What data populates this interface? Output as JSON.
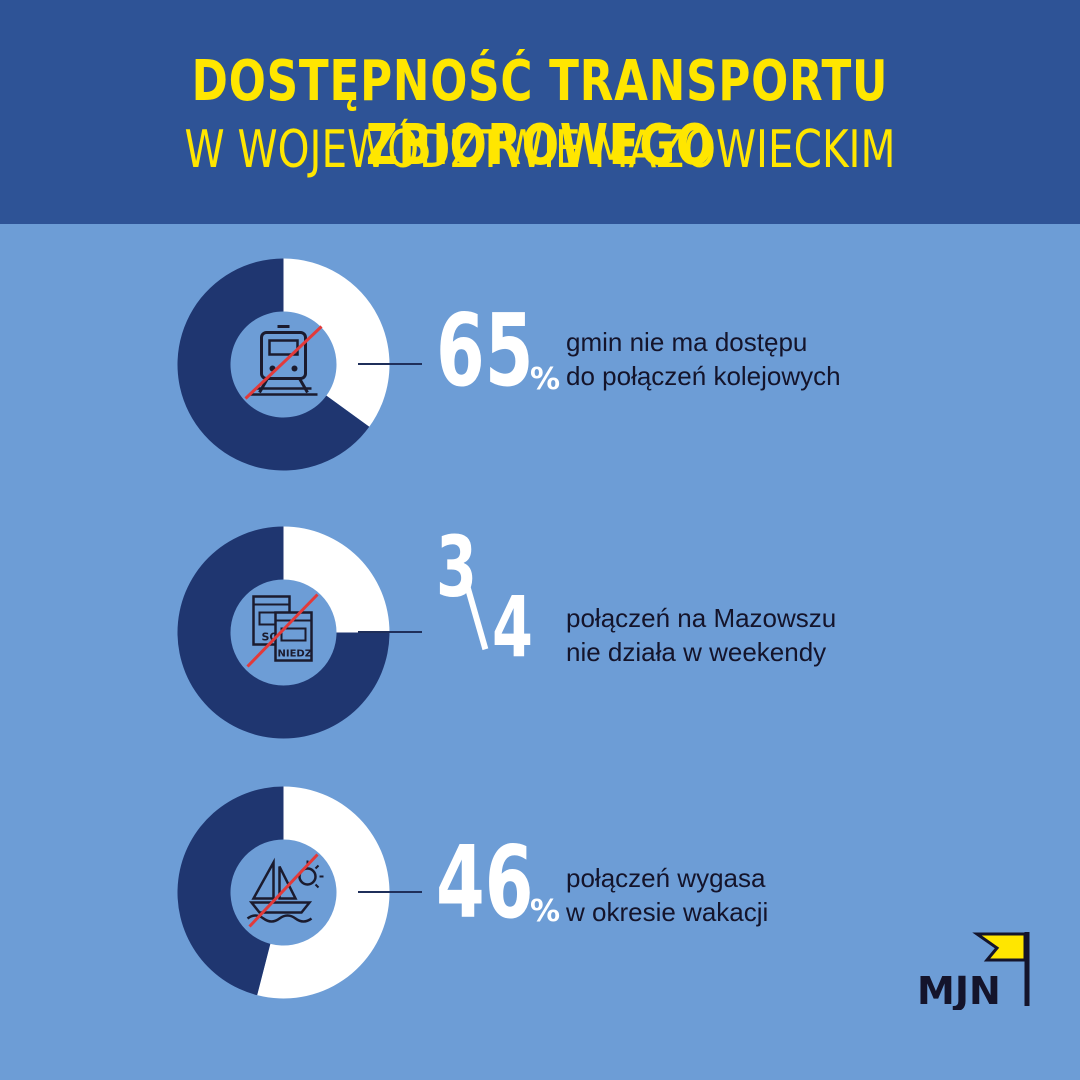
{
  "header": {
    "title_line1": "DOSTĘPNOŚĆ TRANSPORTU ZBIOROWEGO",
    "title_line2": "W WOJEWÓDZTWIE MAZOWIECKIM"
  },
  "colors": {
    "header_bg": "#2e5396",
    "page_bg": "#6d9dd6",
    "title": "#ffe600",
    "donut_share": "#1f3670",
    "donut_rest": "#ffffff",
    "icon_strike": "#e23a3a"
  },
  "stats": [
    {
      "value": "65",
      "suffix": "%",
      "line1": "gmin nie ma dostępu",
      "line2": "do połączeń kolejowych",
      "icon": "train-icon"
    },
    {
      "numerator": "3",
      "denominator": "4",
      "line1": "połączeń na Mazowszu",
      "line2": "nie działa w weekendy",
      "icon": "calendar-icon",
      "icon_label_sat": "SO",
      "icon_label_sun": "NIEDZ"
    },
    {
      "value": "46",
      "suffix": "%",
      "line1": "połączeń wygasa",
      "line2": "w okresie wakacji",
      "icon": "sailboat-sun-icon"
    }
  ],
  "chart_data": [
    {
      "type": "pie",
      "labels": [
        "gmin nie ma dostępu do połączeń kolejowych",
        ""
      ],
      "values": [
        65,
        35
      ],
      "center_icon": "train-icon"
    },
    {
      "type": "pie",
      "labels": [
        "połączeń na Mazowszu nie działa w weekendy",
        ""
      ],
      "values": [
        75,
        25
      ],
      "center_icon": "calendar-icon"
    },
    {
      "type": "pie",
      "labels": [
        "połączeń wygasa w okresie wakacji",
        ""
      ],
      "values": [
        46,
        54
      ],
      "center_icon": "sailboat-sun-icon"
    }
  ],
  "logo": {
    "text": "MJN",
    "icon": "flag-icon"
  }
}
